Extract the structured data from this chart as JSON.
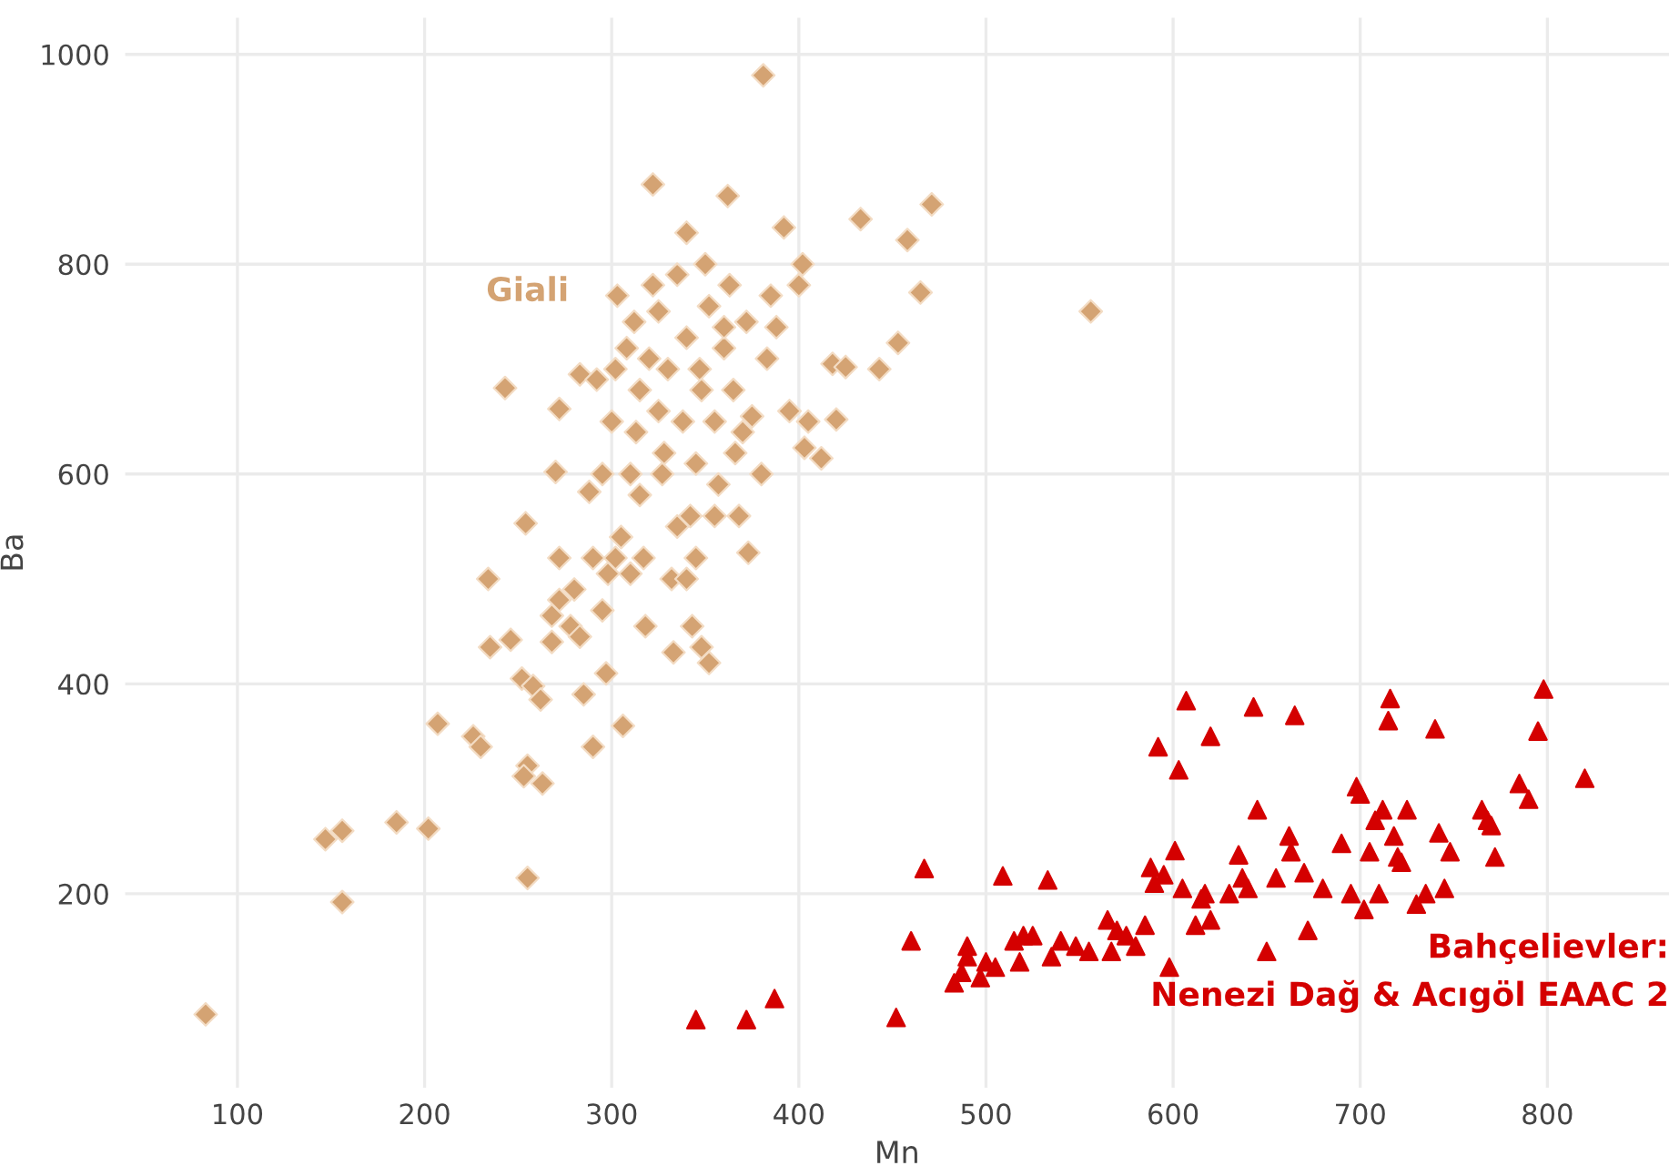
{
  "chart_data": {
    "type": "scatter",
    "xlabel": "Mn",
    "ylabel": "Ba",
    "xlim": [
      40,
      865
    ],
    "ylim": [
      15,
      1035
    ],
    "xticks": [
      100,
      200,
      300,
      400,
      500,
      600,
      700,
      800
    ],
    "yticks": [
      200,
      400,
      600,
      800,
      1000
    ],
    "grid": true,
    "legend": false,
    "series": [
      {
        "name": "Giali",
        "color": "#d4a373",
        "marker": "diamond",
        "x": [
          83,
          147,
          156,
          156,
          185,
          202,
          207,
          226,
          230,
          234,
          235,
          246,
          243,
          252,
          255,
          253,
          255,
          254,
          258,
          263,
          262,
          268,
          268,
          270,
          272,
          272,
          272,
          278,
          283,
          283,
          285,
          288,
          290,
          292,
          295,
          297,
          298,
          300,
          302,
          303,
          305,
          306,
          308,
          310,
          312,
          313,
          315,
          317,
          318,
          320,
          322,
          322,
          325,
          328,
          330,
          332,
          333,
          335,
          338,
          340,
          340,
          342,
          343,
          345,
          347,
          348,
          350,
          352,
          352,
          355,
          357,
          360,
          362,
          363,
          365,
          366,
          368,
          370,
          372,
          373,
          375,
          380,
          381,
          383,
          385,
          388,
          392,
          395,
          400,
          402,
          403,
          405,
          412,
          418,
          420,
          425,
          433,
          443,
          453,
          458,
          465,
          471,
          556,
          302,
          310,
          290,
          280,
          327,
          335,
          345,
          360,
          348,
          295,
          315,
          325,
          340,
          355
        ],
        "values": [
          85,
          252,
          260,
          192,
          268,
          262,
          362,
          350,
          340,
          500,
          435,
          442,
          682,
          405,
          322,
          312,
          215,
          553,
          398,
          305,
          385,
          465,
          440,
          602,
          662,
          520,
          480,
          455,
          445,
          695,
          390,
          583,
          340,
          690,
          600,
          410,
          505,
          650,
          700,
          770,
          540,
          360,
          720,
          600,
          745,
          640,
          680,
          520,
          455,
          710,
          876,
          780,
          755,
          620,
          700,
          500,
          430,
          790,
          650,
          830,
          730,
          560,
          455,
          610,
          700,
          435,
          800,
          760,
          420,
          650,
          590,
          720,
          865,
          780,
          680,
          620,
          560,
          640,
          745,
          525,
          655,
          600,
          980,
          710,
          770,
          740,
          835,
          660,
          780,
          800,
          625,
          650,
          615,
          705,
          652,
          702,
          843,
          700,
          725,
          823,
          773,
          857,
          755,
          520,
          505,
          520,
          490,
          600,
          550,
          520,
          740,
          680,
          470,
          580,
          660,
          500,
          560
        ]
      },
      {
        "name": "Bahçelievler:\nNenezi Dağ & Acıgöl EAAC 2",
        "color": "#d40000",
        "marker": "triangle",
        "x": [
          345,
          372,
          387,
          452,
          460,
          467,
          483,
          487,
          490,
          490,
          497,
          500,
          505,
          509,
          515,
          518,
          520,
          525,
          533,
          535,
          540,
          548,
          555,
          565,
          567,
          570,
          575,
          580,
          585,
          588,
          590,
          592,
          595,
          598,
          601,
          603,
          605,
          607,
          612,
          615,
          617,
          620,
          620,
          630,
          635,
          637,
          640,
          643,
          645,
          650,
          655,
          662,
          663,
          665,
          670,
          672,
          680,
          690,
          695,
          698,
          700,
          702,
          705,
          708,
          710,
          712,
          715,
          716,
          718,
          720,
          722,
          725,
          730,
          735,
          740,
          742,
          745,
          748,
          765,
          768,
          770,
          772,
          785,
          790,
          795,
          798,
          820
        ],
        "values": [
          80,
          80,
          100,
          82,
          155,
          224,
          115,
          125,
          150,
          140,
          120,
          135,
          130,
          217,
          155,
          135,
          160,
          160,
          213,
          140,
          155,
          150,
          145,
          175,
          145,
          165,
          160,
          150,
          170,
          225,
          210,
          340,
          218,
          130,
          241,
          318,
          205,
          384,
          170,
          195,
          200,
          350,
          175,
          200,
          237,
          215,
          205,
          378,
          280,
          145,
          215,
          255,
          240,
          370,
          220,
          165,
          205,
          248,
          200,
          302,
          295,
          185,
          240,
          270,
          200,
          280,
          365,
          386,
          255,
          235,
          230,
          280,
          190,
          200,
          357,
          258,
          205,
          240,
          280,
          270,
          265,
          235,
          305,
          290,
          355,
          395,
          310
        ]
      }
    ]
  }
}
